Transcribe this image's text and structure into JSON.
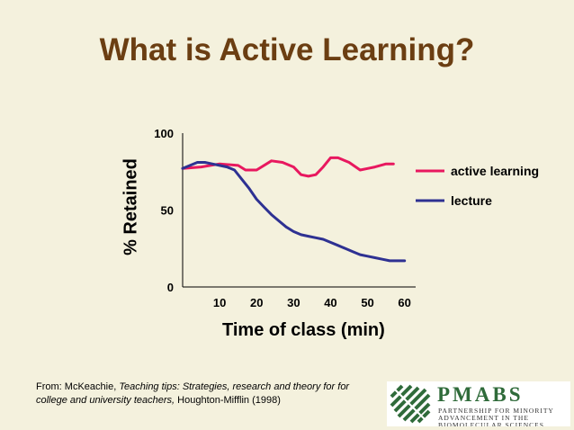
{
  "slide": {
    "title": "What is Active Learning?"
  },
  "chart_data": {
    "type": "line",
    "xlabel": "Time of class (min)",
    "ylabel": "% Retained",
    "xlim": [
      0,
      63
    ],
    "ylim": [
      0,
      100
    ],
    "x_ticks": [
      10,
      20,
      30,
      40,
      50,
      60
    ],
    "y_ticks": [
      0,
      50,
      100
    ],
    "grid": false,
    "legend_placement": "right",
    "series": [
      {
        "name": "active learning",
        "color": "#e8185f",
        "x": [
          0,
          5,
          10,
          15,
          17,
          20,
          24,
          27,
          30,
          32,
          34,
          36,
          38,
          40,
          42,
          45,
          48,
          50,
          52,
          55,
          57
        ],
        "y": [
          77,
          78,
          80,
          79,
          76,
          76,
          82,
          81,
          78,
          73,
          72,
          73,
          78,
          84,
          84,
          81,
          76,
          77,
          78,
          80,
          80
        ]
      },
      {
        "name": "lecture",
        "color": "#2e3192",
        "x": [
          0,
          2,
          4,
          6,
          8,
          10,
          12,
          14,
          16,
          18,
          20,
          22,
          24,
          26,
          28,
          30,
          32,
          34,
          36,
          38,
          40,
          42,
          44,
          46,
          48,
          50,
          52,
          54,
          56,
          58,
          60
        ],
        "y": [
          77,
          79,
          81,
          81,
          80,
          79,
          78,
          76,
          70,
          64,
          57,
          52,
          47,
          43,
          39,
          36,
          34,
          33,
          32,
          31,
          29,
          27,
          25,
          23,
          21,
          20,
          19,
          18,
          17,
          17,
          17
        ]
      }
    ]
  },
  "citation": {
    "prefix": "From: McKeachie, ",
    "work_title": "Teaching tips: Strategies, research and theory for for college and university teachers,",
    "suffix": " Houghton-Mifflin (1998)"
  },
  "logo": {
    "name": "PMABS",
    "subtitle": "Partnership for Minority Advancement in the Biomolecular Sciences"
  }
}
